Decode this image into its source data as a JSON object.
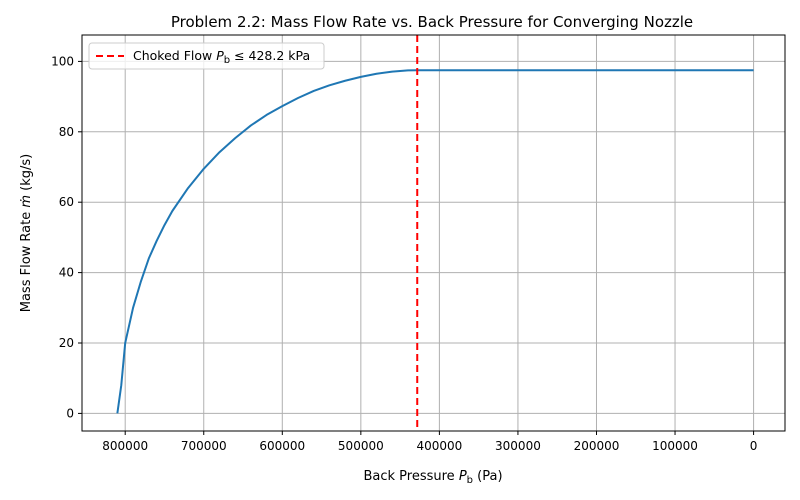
{
  "chart_data": {
    "type": "line",
    "title": "Problem 2.2: Mass Flow Rate vs. Back Pressure for Converging Nozzle",
    "xlabel": {
      "prefix": "Back Pressure ",
      "symbol": "P",
      "subscript": "b",
      "suffix": " (Pa)"
    },
    "ylabel": {
      "prefix": "Mass Flow Rate ",
      "symbol": "ṁ",
      "suffix": " (kg/s)"
    },
    "xlim": [
      855000,
      -40000
    ],
    "ylim": [
      -5,
      107.5
    ],
    "x_reversed": true,
    "grid": true,
    "x_ticks": [
      800000,
      700000,
      600000,
      500000,
      400000,
      300000,
      200000,
      100000,
      0
    ],
    "x_tick_labels": [
      "800000",
      "700000",
      "600000",
      "500000",
      "400000",
      "300000",
      "200000",
      "100000",
      "0"
    ],
    "y_ticks": [
      0,
      20,
      40,
      60,
      80,
      100
    ],
    "y_tick_labels": [
      "0",
      "20",
      "40",
      "60",
      "80",
      "100"
    ],
    "series": [
      {
        "color": "#1f77b4",
        "x": [
          810000,
          805000,
          800000,
          790000,
          780000,
          770000,
          760000,
          750000,
          740000,
          720000,
          700000,
          680000,
          660000,
          640000,
          620000,
          600000,
          580000,
          560000,
          540000,
          520000,
          500000,
          480000,
          460000,
          440000,
          428200,
          400000,
          300000,
          200000,
          100000,
          0
        ],
        "y": [
          0,
          8,
          20,
          30,
          37.5,
          44,
          49,
          53.5,
          57.5,
          64,
          69.5,
          74.2,
          78.2,
          81.8,
          84.8,
          87.3,
          89.6,
          91.6,
          93.2,
          94.5,
          95.6,
          96.5,
          97.1,
          97.45,
          97.5,
          97.5,
          97.5,
          97.5,
          97.5,
          97.5
        ]
      }
    ],
    "vline": {
      "x": 428200,
      "color": "#ff0000",
      "legend": {
        "prefix": "Choked Flow ",
        "symbol": "P",
        "subscript": "b",
        "relation": " ≤ 428.2 kPa"
      }
    },
    "legend_position": "top-left"
  }
}
